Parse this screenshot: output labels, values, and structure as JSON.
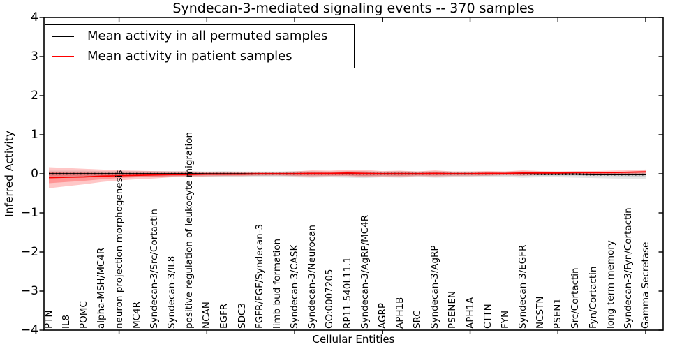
{
  "figure": {
    "title": "Syndecan-3-mediated signaling events -- 370 samples",
    "xlabel": "Cellular Entities",
    "ylabel": "Inferred Activity"
  },
  "legend": {
    "items": [
      {
        "label": "Mean activity in all permuted samples",
        "color": "#000000"
      },
      {
        "label": "Mean activity in patient samples",
        "color": "#ff0000"
      }
    ]
  },
  "chart_data": {
    "type": "line",
    "title": "Syndecan-3-mediated signaling events -- 370 samples",
    "xlabel": "Cellular Entities",
    "ylabel": "Inferred Activity",
    "ylim": [
      -4,
      4
    ],
    "yticks": [
      4,
      3,
      2,
      1,
      0,
      -1,
      -2,
      -3,
      -4
    ],
    "xtick_category_indices": [
      4,
      9,
      14,
      19,
      24,
      29,
      34
    ],
    "grid": false,
    "legend_position": "upper left",
    "categories": [
      "PTN",
      "IL8",
      "POMC",
      "alpha-MSH/MC4R",
      "neuron projection morphogenesis",
      "MC4R",
      "Syndecan-3/Src/Cortactin",
      "Syndecan-3/IL8",
      "positive regulation of leukocyte migration",
      "NCAN",
      "EGFR",
      "SDC3",
      "FGFR/FGF/Syndecan-3",
      "limb bud formation",
      "Syndecan-3/CASK",
      "Syndecan-3/Neurocan",
      "GO:0007205",
      "RP11-540L11.1",
      "Syndecan-3/AgRP/MC4R",
      "AGRP",
      "APH1B",
      "SRC",
      "Syndecan-3/AgRP",
      "PSENEN",
      "APH1A",
      "CTTN",
      "FYN",
      "Syndecan-3/EGFR",
      "NCSTN",
      "PSEN1",
      "Src/Cortactin",
      "Fyn/Cortactin",
      "long-term memory",
      "Syndecan-3/Fyn/Cortactin",
      "Gamma Secretase"
    ],
    "series": [
      {
        "name": "Mean activity in all permuted samples",
        "color": "#000000",
        "line_style": "solid_with_dotted_overlay",
        "values": [
          0,
          0,
          0,
          0,
          0,
          0,
          0,
          0,
          0,
          0,
          0,
          0,
          0,
          0,
          0,
          0,
          0,
          0,
          0,
          0,
          0,
          0,
          0,
          0,
          0,
          0,
          0,
          0,
          -0.01,
          -0.01,
          -0.01,
          -0.02,
          -0.02,
          -0.02,
          -0.02
        ]
      },
      {
        "name": "Mean activity in patient samples",
        "color": "#ff0000",
        "line_style": "solid",
        "values": [
          -0.1,
          -0.09,
          -0.08,
          -0.06,
          -0.05,
          -0.04,
          -0.03,
          -0.02,
          -0.02,
          -0.01,
          -0.01,
          -0.01,
          0,
          0,
          0,
          0.01,
          0.01,
          0.02,
          0.01,
          0,
          0,
          0,
          0.01,
          0,
          0,
          0.01,
          0.01,
          0.02,
          0.02,
          0.02,
          0.03,
          0.03,
          0.03,
          0.04,
          0.05
        ]
      }
    ],
    "bands": [
      {
        "name": "permuted-samples-outer-band",
        "color": "rgba(110,110,110,0.18)",
        "upper": [
          0.08,
          0.08,
          0.08,
          0.07,
          0.07,
          0.07,
          0.07,
          0.07,
          0.07,
          0.06,
          0.07,
          0.06,
          0.06,
          0.06,
          0.07,
          0.07,
          0.06,
          0.07,
          0.07,
          0.06,
          0.07,
          0.06,
          0.07,
          0.06,
          0.06,
          0.06,
          0.06,
          0.07,
          0.06,
          0.06,
          0.06,
          0.06,
          0.05,
          0.05,
          0.05
        ],
        "lower": [
          -0.1,
          -0.1,
          -0.1,
          -0.09,
          -0.09,
          -0.09,
          -0.09,
          -0.09,
          -0.09,
          -0.08,
          -0.09,
          -0.08,
          -0.09,
          -0.08,
          -0.09,
          -0.1,
          -0.09,
          -0.1,
          -0.11,
          -0.09,
          -0.1,
          -0.08,
          -0.1,
          -0.09,
          -0.08,
          -0.09,
          -0.08,
          -0.1,
          -0.09,
          -0.09,
          -0.1,
          -0.11,
          -0.12,
          -0.13,
          -0.14
        ]
      },
      {
        "name": "permuted-samples-inner-band",
        "color": "rgba(110,110,110,0.18)",
        "upper": [
          0.04,
          0.04,
          0.04,
          0.04,
          0.04,
          0.04,
          0.04,
          0.04,
          0.04,
          0.03,
          0.04,
          0.03,
          0.03,
          0.03,
          0.04,
          0.04,
          0.03,
          0.04,
          0.04,
          0.03,
          0.04,
          0.03,
          0.04,
          0.03,
          0.03,
          0.03,
          0.03,
          0.04,
          0.03,
          0.03,
          0.03,
          0.03,
          0.02,
          0.02,
          0.02
        ],
        "lower": [
          -0.05,
          -0.05,
          -0.05,
          -0.05,
          -0.05,
          -0.05,
          -0.05,
          -0.05,
          -0.05,
          -0.04,
          -0.05,
          -0.04,
          -0.05,
          -0.04,
          -0.05,
          -0.05,
          -0.05,
          -0.05,
          -0.06,
          -0.05,
          -0.05,
          -0.04,
          -0.05,
          -0.05,
          -0.04,
          -0.05,
          -0.04,
          -0.05,
          -0.05,
          -0.05,
          -0.05,
          -0.06,
          -0.06,
          -0.07,
          -0.08
        ]
      },
      {
        "name": "patient-samples-outer-band",
        "color": "rgba(255,0,0,0.22)",
        "upper": [
          0.17,
          0.15,
          0.13,
          0.11,
          0.09,
          0.08,
          0.07,
          0.06,
          0.06,
          0.05,
          0.05,
          0.05,
          0.05,
          0.05,
          0.06,
          0.09,
          0.08,
          0.1,
          0.1,
          0.07,
          0.08,
          0.06,
          0.09,
          0.06,
          0.06,
          0.07,
          0.06,
          0.09,
          0.07,
          0.06,
          0.07,
          0.07,
          0.08,
          0.09,
          0.11
        ],
        "lower": [
          -0.37,
          -0.32,
          -0.27,
          -0.21,
          -0.17,
          -0.14,
          -0.12,
          -0.09,
          -0.08,
          -0.07,
          -0.06,
          -0.06,
          -0.05,
          -0.05,
          -0.06,
          -0.07,
          -0.06,
          -0.06,
          -0.08,
          -0.07,
          -0.08,
          -0.06,
          -0.07,
          -0.06,
          -0.06,
          -0.05,
          -0.04,
          -0.05,
          -0.03,
          -0.02,
          -0.01,
          -0.01,
          0.0,
          0.0,
          -0.01
        ]
      },
      {
        "name": "patient-samples-inner-band",
        "color": "rgba(255,0,0,0.25)",
        "upper": [
          0.04,
          0.03,
          0.03,
          0.02,
          0.02,
          0.02,
          0.02,
          0.02,
          0.02,
          0.02,
          0.02,
          0.02,
          0.02,
          0.02,
          0.03,
          0.05,
          0.04,
          0.06,
          0.06,
          0.03,
          0.04,
          0.03,
          0.05,
          0.03,
          0.03,
          0.04,
          0.03,
          0.05,
          0.04,
          0.04,
          0.05,
          0.05,
          0.05,
          0.06,
          0.08
        ],
        "lower": [
          -0.24,
          -0.21,
          -0.18,
          -0.14,
          -0.11,
          -0.09,
          -0.08,
          -0.06,
          -0.05,
          -0.04,
          -0.04,
          -0.04,
          -0.03,
          -0.03,
          -0.04,
          -0.04,
          -0.04,
          -0.04,
          -0.05,
          -0.04,
          -0.05,
          -0.04,
          -0.04,
          -0.03,
          -0.03,
          -0.03,
          -0.02,
          -0.02,
          -0.01,
          -0.01,
          0.0,
          0.0,
          0.01,
          0.01,
          0.02
        ]
      }
    ]
  }
}
